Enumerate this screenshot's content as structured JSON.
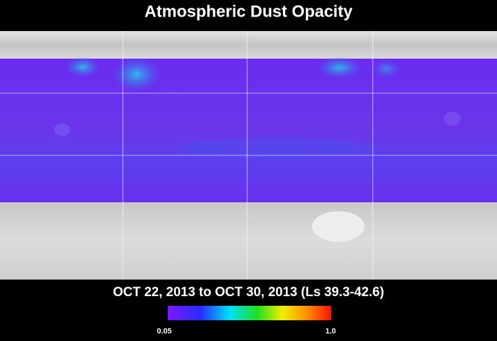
{
  "title": "Atmospheric Dust Opacity",
  "date_range": "OCT 22, 2013 to OCT 30, 2013 (Ls 39.3-42.6)",
  "colorbar": {
    "min_label": "0.05",
    "max_label": "1.0"
  }
}
